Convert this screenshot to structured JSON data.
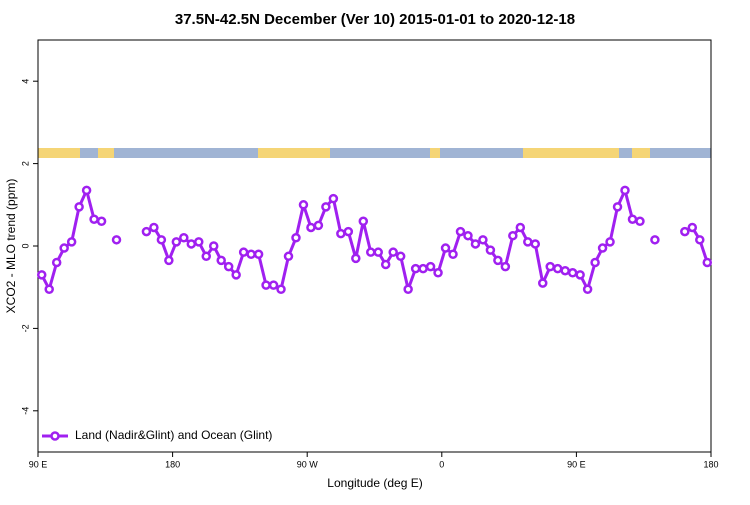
{
  "chart_data": {
    "type": "line",
    "title": "37.5N-42.5N December (Ver 10)   2015-01-01 to 2020-12-18",
    "x_label": "Longitude (deg E)",
    "y_label": "XCO2 - MLO trend (ppm)",
    "x": [
      92.5,
      97.5,
      102.5,
      107.5,
      112.5,
      117.5,
      122.5,
      127.5,
      132.5,
      137.5,
      142.5,
      147.5,
      152.5,
      157.5,
      162.5,
      167.5,
      172.5,
      177.5,
      182.5,
      187.5,
      192.5,
      197.5,
      202.5,
      207.5,
      212.5,
      217.5,
      222.5,
      227.5,
      232.5,
      237.5,
      242.5,
      247.5,
      252.5,
      257.5,
      262.5,
      267.5,
      272.5,
      277.5,
      282.5,
      287.5,
      292.5,
      297.5,
      302.5,
      307.5,
      312.5,
      317.5,
      322.5,
      327.5,
      332.5,
      337.5,
      342.5,
      347.5,
      352.5,
      357.5,
      362.5,
      367.5,
      372.5,
      377.5,
      382.5,
      387.5,
      392.5,
      397.5,
      402.5,
      407.5,
      412.5,
      417.5,
      422.5,
      427.5,
      432.5,
      437.5,
      442.5,
      447.5,
      452.5,
      457.5,
      462.5,
      467.5,
      472.5,
      477.5,
      482.5,
      487.5,
      492.5,
      497.5,
      502.5,
      507.5,
      512.5,
      517.5,
      522.5,
      527.5,
      532.5,
      537.5
    ],
    "series": [
      {
        "name": "Land (Nadir&Glint) and Ocean (Glint)",
        "color": "#a020f0",
        "values": [
          -0.7,
          -1.05,
          -0.4,
          -0.05,
          0.1,
          0.95,
          1.35,
          0.65,
          0.6,
          null,
          0.15,
          null,
          null,
          null,
          0.35,
          0.45,
          0.15,
          -0.35,
          0.1,
          0.2,
          0.05,
          0.1,
          -0.25,
          0.0,
          -0.35,
          -0.5,
          -0.7,
          -0.15,
          -0.2,
          -0.2,
          -0.95,
          -0.95,
          -1.05,
          -0.25,
          0.2,
          1.0,
          0.45,
          0.5,
          0.95,
          1.15,
          0.3,
          0.35,
          -0.3,
          0.6,
          -0.15,
          -0.15,
          -0.45,
          -0.15,
          -0.25,
          -1.05,
          -0.55,
          -0.55,
          -0.5,
          -0.65,
          -0.05,
          -0.2,
          0.35,
          0.25,
          0.05,
          0.15,
          -0.1,
          -0.35,
          -0.5,
          0.25,
          0.45,
          0.1,
          0.05,
          -0.9,
          -0.5,
          -0.55,
          -0.6,
          -0.65,
          -0.7,
          -1.05,
          -0.4,
          -0.05,
          0.1,
          0.95,
          1.35,
          0.65,
          0.6,
          null,
          0.15,
          null,
          null,
          null,
          0.35,
          0.45,
          0.15,
          -0.4
        ]
      }
    ],
    "xlim": [
      90,
      540
    ],
    "xticks": [
      {
        "value": 90,
        "label": "90 E"
      },
      180,
      {
        "value": 270,
        "label": "90 W"
      },
      {
        "value": 360,
        "label": "0"
      },
      {
        "value": 450,
        "label": "90 E"
      },
      {
        "value": 540,
        "label": "180"
      }
    ],
    "ylim": [
      -5,
      5
    ],
    "yticks": [
      -4,
      -2,
      0,
      2,
      4
    ],
    "legend": "bottom-left"
  }
}
